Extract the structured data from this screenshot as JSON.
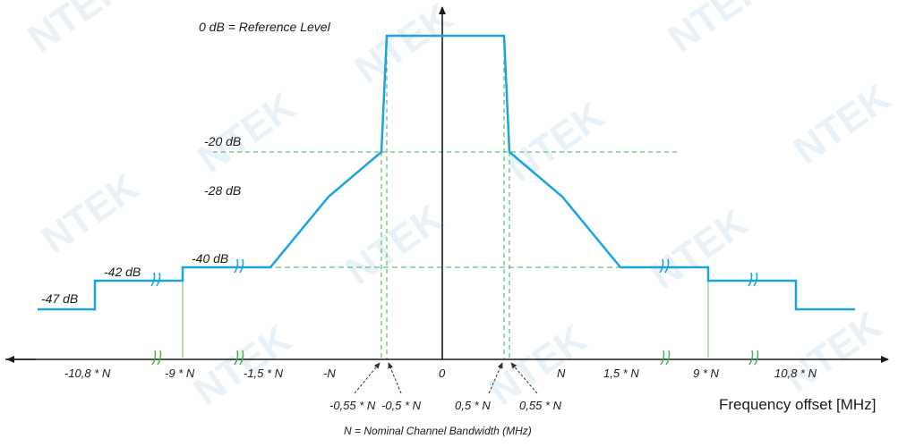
{
  "watermark": "NTEK",
  "colors": {
    "mask": "#1aa3df",
    "guide_green": "#35b548",
    "axis": "#1a1a1a"
  },
  "labels": {
    "reference": "0 dB = Reference Level",
    "db_20": "-20 dB",
    "db_28": "-28 dB",
    "db_40": "-40 dB",
    "db_42": "-42 dB",
    "db_47": "-47 dB",
    "x_neg_10_8": "-10,8 * N",
    "x_neg_9": "-9 * N",
    "x_neg_1_5": "-1,5 * N",
    "x_neg_n": "-N",
    "x_zero": "0",
    "x_pos_n": "N",
    "x_pos_1_5": "1,5 * N",
    "x_pos_9": "9 * N",
    "x_pos_10_8": "10,8 * N",
    "x_neg_0_55": "-0,55 * N",
    "x_neg_0_5": "-0,5 * N",
    "x_pos_0_5": "0,5 * N",
    "x_pos_0_55": "0,55 * N",
    "axis_title": "Frequency offset [MHz]",
    "footnote": "N = Nominal Channel Bandwidth (MHz)"
  },
  "axis_break_symbol": "//"
}
